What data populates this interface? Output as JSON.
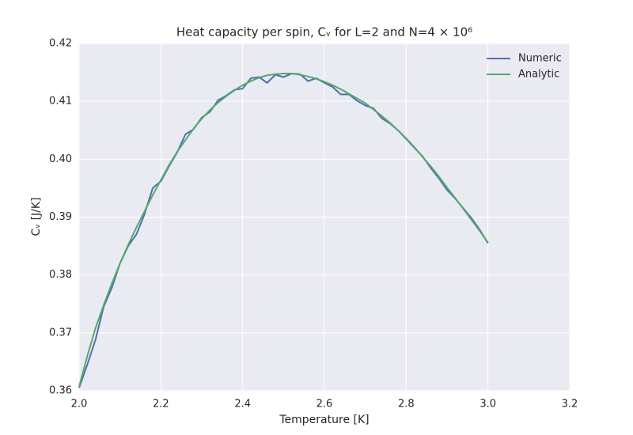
{
  "chart_data": {
    "type": "line",
    "title": "Heat capacity per spin, Cᵥ for L=2 and N=4 × 10⁶",
    "xlabel": "Temperature [K]",
    "ylabel": "Cᵥ [J/K]",
    "x": [
      2.0,
      2.02,
      2.04,
      2.06,
      2.08,
      2.1,
      2.12,
      2.14,
      2.16,
      2.18,
      2.2,
      2.22,
      2.24,
      2.26,
      2.28,
      2.3,
      2.32,
      2.34,
      2.36,
      2.38,
      2.4,
      2.42,
      2.44,
      2.46,
      2.48,
      2.5,
      2.52,
      2.54,
      2.56,
      2.58,
      2.6,
      2.62,
      2.64,
      2.66,
      2.68,
      2.7,
      2.72,
      2.74,
      2.76,
      2.78,
      2.8,
      2.82,
      2.84,
      2.86,
      2.88,
      2.9,
      2.92,
      2.94,
      2.96,
      2.98,
      3.0
    ],
    "series": [
      {
        "name": "Numeric",
        "color": "#4c72b0",
        "values": [
          0.3605,
          0.3645,
          0.3688,
          0.3745,
          0.3778,
          0.382,
          0.385,
          0.387,
          0.3905,
          0.395,
          0.3962,
          0.3988,
          0.4012,
          0.4043,
          0.4052,
          0.4072,
          0.4082,
          0.4102,
          0.411,
          0.412,
          0.4122,
          0.414,
          0.4142,
          0.4132,
          0.4146,
          0.4142,
          0.4148,
          0.4147,
          0.4135,
          0.414,
          0.4132,
          0.4125,
          0.4112,
          0.4112,
          0.4101,
          0.4093,
          0.4088,
          0.4071,
          0.4062,
          0.405,
          0.4035,
          0.402,
          0.4005,
          0.3985,
          0.3967,
          0.3947,
          0.3932,
          0.3915,
          0.3898,
          0.3878,
          0.3855
        ]
      },
      {
        "name": "Analytic",
        "color": "#55a868",
        "values": [
          0.3607,
          0.366,
          0.3708,
          0.3748,
          0.3785,
          0.382,
          0.3852,
          0.3882,
          0.391,
          0.3938,
          0.3964,
          0.399,
          0.4013,
          0.4033,
          0.4053,
          0.407,
          0.4085,
          0.4098,
          0.4109,
          0.4119,
          0.4128,
          0.4135,
          0.4141,
          0.4145,
          0.4147,
          0.4148,
          0.4148,
          0.4146,
          0.4143,
          0.4139,
          0.4134,
          0.4128,
          0.4121,
          0.4113,
          0.4105,
          0.4097,
          0.4086,
          0.4075,
          0.4063,
          0.405,
          0.4036,
          0.4021,
          0.4004,
          0.3988,
          0.397,
          0.3951,
          0.3933,
          0.3914,
          0.3895,
          0.3876,
          0.3856
        ]
      }
    ],
    "xlim": [
      2.0,
      3.2
    ],
    "xticks": [
      {
        "value": 2.0,
        "label": "2.0"
      },
      {
        "value": 2.2,
        "label": "2.2"
      },
      {
        "value": 2.4,
        "label": "2.4"
      },
      {
        "value": 2.6,
        "label": "2.6"
      },
      {
        "value": 2.8,
        "label": "2.8"
      },
      {
        "value": 3.0,
        "label": "3.0"
      },
      {
        "value": 3.2,
        "label": "3.2"
      }
    ],
    "ylim": [
      0.36,
      0.42
    ],
    "yticks": [
      0.36,
      0.37,
      0.38,
      0.39,
      {
        "value": 0.4,
        "label": "0.40"
      },
      0.41,
      0.42
    ],
    "grid": true,
    "legend": "upper-right"
  }
}
